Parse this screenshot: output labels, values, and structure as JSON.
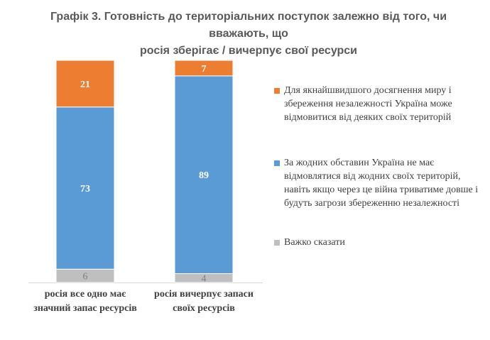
{
  "title_lines": [
    "Графік 3. Готовність до територіальних поступок залежно від того, чи вважають, що",
    "росія зберігає / вичерпує свої ресурси"
  ],
  "chart_data": {
    "type": "bar",
    "stacked": true,
    "percent_stacked": true,
    "categories": [
      [
        "росія все одно має",
        "значний запас ресурсів"
      ],
      [
        "росія вичерпує запаси",
        "своїх ресурсів"
      ]
    ],
    "series": [
      {
        "name": "Важко сказати",
        "color": "#bfbfbf",
        "label_color": "#7f7f7f",
        "values": [
          6,
          4
        ]
      },
      {
        "name": "За жодних обставин Україна не має відмовлятися від жодних своїх територій, навіть якщо через це війна триватиме довше і будуть загрози збереженню незалежності",
        "color": "#5b9bd5",
        "label_color": "#ffffff",
        "values": [
          73,
          89
        ]
      },
      {
        "name": "Для якнайшвидшого досягнення миру і збереження незалежності Україна може відмовитися від деяких своїх територій",
        "color": "#ed7d31",
        "label_color": "#ffffff",
        "values": [
          21,
          7
        ]
      }
    ],
    "legend": {
      "position": "right",
      "order": [
        2,
        1,
        0
      ]
    },
    "grid": false,
    "ylim": [
      0,
      100
    ]
  }
}
